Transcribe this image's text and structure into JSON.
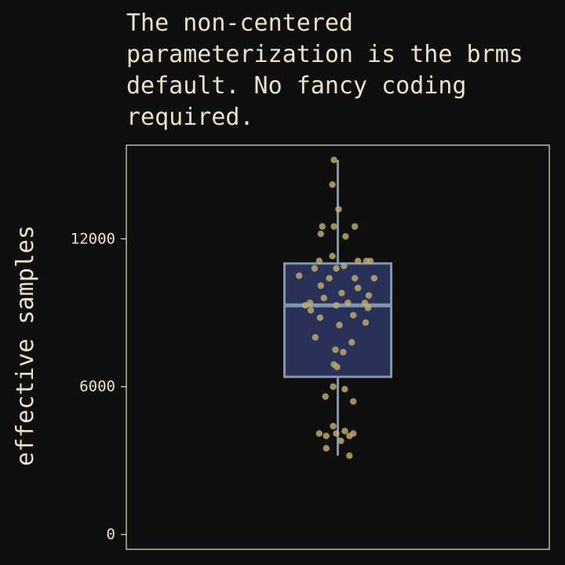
{
  "chart_data": {
    "type": "box",
    "title": "The non-centered parameterization is the brms default. No fancy coding required.",
    "xlabel": "",
    "ylabel": "effective samples",
    "ylim": [
      -600,
      15800
    ],
    "yticks": [
      0,
      6000,
      12000
    ],
    "ytick_labels": [
      "0",
      "6000",
      "12000"
    ],
    "grid": false,
    "box": {
      "min": 3200,
      "q1": 6400,
      "median": 9300,
      "q3": 11000,
      "max": 15200
    },
    "points": [
      {
        "x": -0.05,
        "y": 15200
      },
      {
        "x": -0.07,
        "y": 14200
      },
      {
        "x": 0.01,
        "y": 13200
      },
      {
        "x": -0.2,
        "y": 12500
      },
      {
        "x": -0.22,
        "y": 12200
      },
      {
        "x": 0.22,
        "y": 12500
      },
      {
        "x": -0.05,
        "y": 12500
      },
      {
        "x": 0.1,
        "y": 12100
      },
      {
        "x": -0.07,
        "y": 11300
      },
      {
        "x": 0.26,
        "y": 11100
      },
      {
        "x": 0.37,
        "y": 11100
      },
      {
        "x": 0.42,
        "y": 11100
      },
      {
        "x": -0.24,
        "y": 11100
      },
      {
        "x": 0.08,
        "y": 10900
      },
      {
        "x": -0.02,
        "y": 10800
      },
      {
        "x": -0.3,
        "y": 10800
      },
      {
        "x": -0.5,
        "y": 10500
      },
      {
        "x": 0.47,
        "y": 10400
      },
      {
        "x": -0.11,
        "y": 10400
      },
      {
        "x": 0.22,
        "y": 10400
      },
      {
        "x": -0.22,
        "y": 10100
      },
      {
        "x": 0.26,
        "y": 10000
      },
      {
        "x": 0.05,
        "y": 9800
      },
      {
        "x": 0.4,
        "y": 9700
      },
      {
        "x": -0.18,
        "y": 9600
      },
      {
        "x": -0.36,
        "y": 9400
      },
      {
        "x": 0.13,
        "y": 9400
      },
      {
        "x": -0.42,
        "y": 9300
      },
      {
        "x": -0.35,
        "y": 9100
      },
      {
        "x": -0.02,
        "y": 9300
      },
      {
        "x": 0.35,
        "y": 9400
      },
      {
        "x": 0.39,
        "y": 9200
      },
      {
        "x": 0.2,
        "y": 8900
      },
      {
        "x": -0.23,
        "y": 8800
      },
      {
        "x": 0.36,
        "y": 8600
      },
      {
        "x": 0.02,
        "y": 8500
      },
      {
        "x": -0.29,
        "y": 8000
      },
      {
        "x": 0.18,
        "y": 7800
      },
      {
        "x": -0.03,
        "y": 7500
      },
      {
        "x": 0.07,
        "y": 7400
      },
      {
        "x": -0.05,
        "y": 6900
      },
      {
        "x": -0.01,
        "y": 6800
      },
      {
        "x": -0.06,
        "y": 6000
      },
      {
        "x": 0.09,
        "y": 5900
      },
      {
        "x": -0.16,
        "y": 5600
      },
      {
        "x": 0.2,
        "y": 5400
      },
      {
        "x": -0.06,
        "y": 4400
      },
      {
        "x": 0.09,
        "y": 4200
      },
      {
        "x": -0.24,
        "y": 4100
      },
      {
        "x": -0.15,
        "y": 4000
      },
      {
        "x": -0.02,
        "y": 4100
      },
      {
        "x": 0.15,
        "y": 4000
      },
      {
        "x": 0.2,
        "y": 4100
      },
      {
        "x": 0.04,
        "y": 3800
      },
      {
        "x": -0.15,
        "y": 3500
      },
      {
        "x": 0.15,
        "y": 3200
      }
    ],
    "colors": {
      "background": "#0f0f10",
      "panel_border": "#ede0cc",
      "text": "#ede0cc",
      "box_fill": "#2a3159",
      "box_stroke": "#8096ad",
      "points": "#c0ad6e"
    }
  }
}
